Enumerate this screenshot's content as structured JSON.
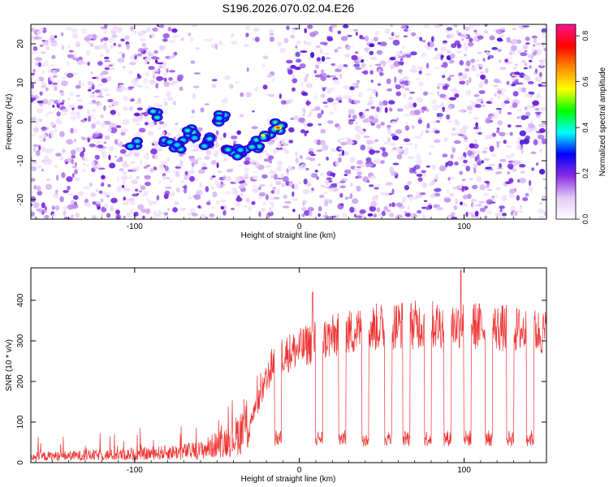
{
  "title": "S196.2026.070.02.04.E26",
  "chart_data": [
    {
      "type": "heatmap",
      "xlabel": "Height of straight line (km)",
      "ylabel": "Frequency (Hz)",
      "xlim": [
        -163,
        150
      ],
      "ylim": [
        -25,
        25
      ],
      "x_ticks": [
        -100,
        0,
        100
      ],
      "y_ticks": [
        -20,
        -10,
        0,
        10,
        20
      ],
      "colorbar": {
        "label": "Normalized spectral amplitude",
        "range": [
          0,
          0.85
        ],
        "ticks": [
          "0.0",
          "0.2",
          "0.4",
          "0.6",
          "0.8"
        ],
        "colors": [
          "#ffffff",
          "#e3c9f7",
          "#8a2be2",
          "#0000ff",
          "#00ffff",
          "#00ff00",
          "#ffff00",
          "#ff8c00",
          "#ff0000",
          "#ff1493"
        ]
      },
      "signal_track": [
        {
          "x": -100,
          "y": -6
        },
        {
          "x": -88,
          "y": 1.5
        },
        {
          "x": -80,
          "y": -6
        },
        {
          "x": -73,
          "y": -6
        },
        {
          "x": -65,
          "y": -3
        },
        {
          "x": -55,
          "y": -5
        },
        {
          "x": -48,
          "y": 0.5
        },
        {
          "x": -42,
          "y": -7
        },
        {
          "x": -35,
          "y": -7.5
        },
        {
          "x": -27,
          "y": -6
        },
        {
          "x": -20,
          "y": -3
        },
        {
          "x": -13,
          "y": -1.5
        }
      ]
    },
    {
      "type": "line",
      "xlabel": "Height of straight line (km)",
      "ylabel": "SNR (10 * v/v)",
      "xlim": [
        -163,
        150
      ],
      "ylim": [
        0,
        480
      ],
      "x_ticks": [
        -100,
        0,
        100
      ],
      "y_ticks": [
        0,
        100,
        200,
        300,
        400
      ],
      "color": "#ee3333",
      "profile_x": [
        -163,
        -100,
        -60,
        -40,
        -30,
        -20,
        -15,
        0,
        10,
        20,
        40,
        60,
        100,
        150
      ],
      "profile_y": [
        15,
        20,
        30,
        60,
        100,
        200,
        260,
        280,
        300,
        310,
        330,
        340,
        340,
        320
      ],
      "dips_x": [
        -13,
        12,
        26,
        40,
        54,
        65,
        78,
        90,
        102,
        115,
        128,
        140
      ],
      "dip_depth": 60,
      "spikes": [
        {
          "x": 8,
          "y": 420
        },
        {
          "x": 98,
          "y": 475
        }
      ]
    }
  ]
}
